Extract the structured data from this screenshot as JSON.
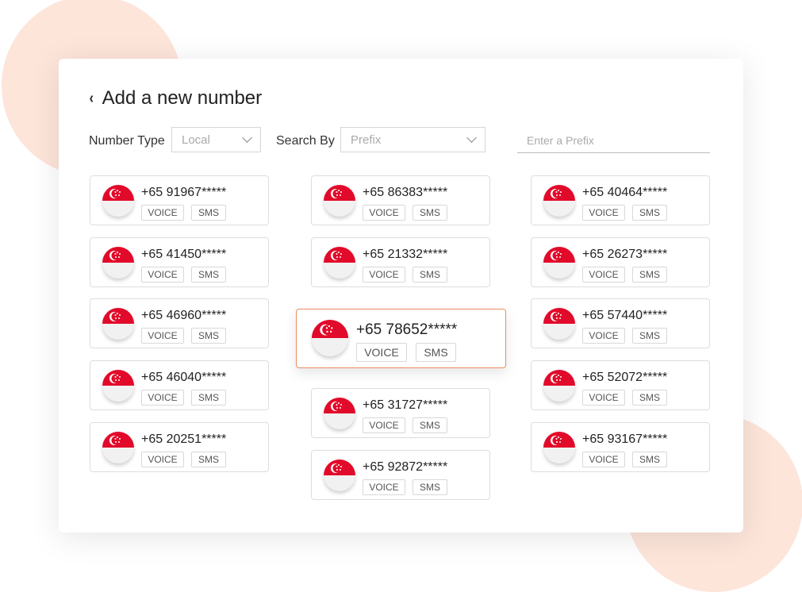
{
  "header": {
    "title": "Add a new number",
    "back_icon": "chevron-left-icon"
  },
  "filters": {
    "number_type_label": "Number Type",
    "number_type_value": "Local",
    "search_by_label": "Search By",
    "search_by_value": "Prefix",
    "prefix_placeholder": "Enter a Prefix"
  },
  "colors": {
    "accent": "#ec8c64",
    "flag_red": "#e20a2a",
    "blob": "#fde5da"
  },
  "numbers": [
    {
      "number": "+65 91967*****",
      "tags": [
        "VOICE",
        "SMS"
      ]
    },
    {
      "number": "+65 41450*****",
      "tags": [
        "VOICE",
        "SMS"
      ]
    },
    {
      "number": "+65 46960*****",
      "tags": [
        "VOICE",
        "SMS"
      ]
    },
    {
      "number": "+65 46040*****",
      "tags": [
        "VOICE",
        "SMS"
      ]
    },
    {
      "number": "+65 20251*****",
      "tags": [
        "VOICE",
        "SMS"
      ]
    },
    {
      "number": "+65 86383*****",
      "tags": [
        "VOICE",
        "SMS"
      ]
    },
    {
      "number": "+65 21332*****",
      "tags": [
        "VOICE",
        "SMS"
      ]
    },
    {
      "number": "+65 78652*****",
      "tags": [
        "VOICE",
        "SMS"
      ],
      "selected": true
    },
    {
      "number": "+65 31727*****",
      "tags": [
        "VOICE",
        "SMS"
      ]
    },
    {
      "number": "+65 92872*****",
      "tags": [
        "VOICE",
        "SMS"
      ]
    },
    {
      "number": "+65 40464*****",
      "tags": [
        "VOICE",
        "SMS"
      ]
    },
    {
      "number": "+65 26273*****",
      "tags": [
        "VOICE",
        "SMS"
      ]
    },
    {
      "number": "+65 57440*****",
      "tags": [
        "VOICE",
        "SMS"
      ]
    },
    {
      "number": "+65 52072*****",
      "tags": [
        "VOICE",
        "SMS"
      ]
    },
    {
      "number": "+65 93167*****",
      "tags": [
        "VOICE",
        "SMS"
      ]
    }
  ]
}
